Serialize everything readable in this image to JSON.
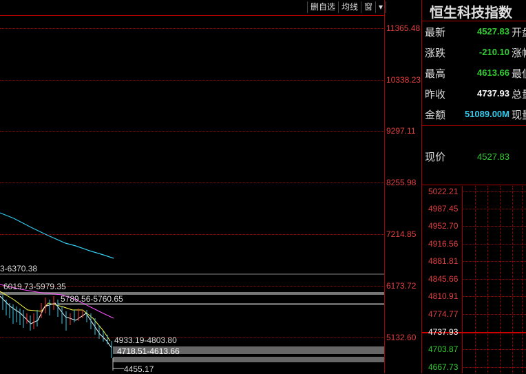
{
  "toolbar": {
    "buttons": [
      "删自选",
      "均线",
      "窗",
      "▾"
    ]
  },
  "chart": {
    "y_axis_labels": [
      "11365.48",
      "10338.23",
      "9297.11",
      "8255.98",
      "7214.85",
      "6173.72",
      "5132.60"
    ],
    "annotations": {
      "level_1": "3-6370.38",
      "level_2": "6019.73-5979.35",
      "level_3": "5789.56-5760.65",
      "level_4": "4933.19-4803.80",
      "level_5": "4718.51-4613.66",
      "level_6": "4455.17"
    }
  },
  "info": {
    "title": "恒生科技指数",
    "rows": [
      {
        "label": "最新",
        "value": "4527.83",
        "color": "#33cc33",
        "right": "开盘"
      },
      {
        "label": "涨跌",
        "value": "-210.10",
        "color": "#33cc33",
        "right": "涨幅"
      },
      {
        "label": "最高",
        "value": "4613.66",
        "color": "#33cc33",
        "right": "最低"
      },
      {
        "label": "昨收",
        "value": "4737.93",
        "color": "#ffffff",
        "right": "总量"
      },
      {
        "label": "金额",
        "value": "51089.00M",
        "color": "#33ccee",
        "right": "现量"
      }
    ],
    "current_price_label": "现价",
    "current_price_value": "4527.83",
    "ladder": [
      "5022.21",
      "4987.45",
      "4952.70",
      "4916.56",
      "4881.81",
      "4845.66",
      "4810.91",
      "4774.77",
      "4737.93",
      "4703.87",
      "4667.73"
    ]
  }
}
